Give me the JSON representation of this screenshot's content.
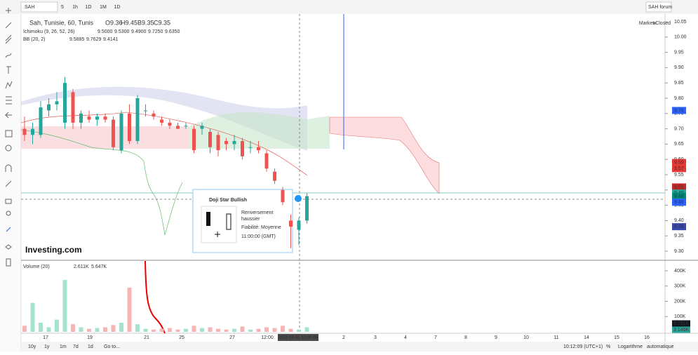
{
  "toolbar": {
    "symbol": "SAH",
    "intervals": [
      "5",
      "1h",
      "1D",
      "1M",
      "1D"
    ],
    "forum": "SAH forum"
  },
  "legend": {
    "title": "Sah, Tunisie, 60, Tunis",
    "ohlc": [
      "O9.36",
      "H9.45",
      "B9.35",
      "C9.35"
    ],
    "ichimoku": {
      "label": "Ichimoku (9, 26, 52, 26)",
      "values": [
        "9.5000",
        "9.5300",
        "9.4900",
        "9.7250",
        "9.6350"
      ],
      "colors": [
        "#2962ff",
        "#e53935",
        "#43a047",
        "#43a047",
        "#e53935"
      ]
    },
    "bb": {
      "label": "BB (20, 2)",
      "values": [
        "9.5885",
        "9.7629",
        "9.4141"
      ],
      "colors": [
        "#e53935",
        "#2962ff",
        "#2962ff"
      ]
    }
  },
  "market_status": "Market Closed",
  "price_ticks": [
    "10.05",
    "10.00",
    "9.95",
    "9.90",
    "9.85",
    "9.80",
    "9.75",
    "9.70",
    "9.65",
    "9.60",
    "9.55",
    "9.50",
    "9.45",
    "9.40",
    "9.35",
    "9.30"
  ],
  "price_labels": [
    {
      "text": "9.76",
      "color": "#2962ff"
    },
    {
      "text": "9.59",
      "color": "#e53935"
    },
    {
      "text": "9.57",
      "color": "#e53935"
    },
    {
      "text": "9.51",
      "color": "#c62828"
    },
    {
      "text": "9.49",
      "color": "#26a69a"
    },
    {
      "text": "9.47",
      "color": "#555555"
    },
    {
      "text": "9.48",
      "color": "#00897b"
    },
    {
      "text": "9.46",
      "color": "#2962ff"
    },
    {
      "text": "9.38",
      "color": "#3949ab"
    }
  ],
  "candles": [
    [
      9.7,
      9.74,
      9.66,
      9.68
    ],
    [
      9.68,
      9.72,
      9.65,
      9.7
    ],
    [
      9.68,
      9.79,
      9.67,
      9.77
    ],
    [
      9.76,
      9.8,
      9.74,
      9.78
    ],
    [
      9.78,
      9.82,
      9.76,
      9.79
    ],
    [
      9.72,
      9.87,
      9.7,
      9.85
    ],
    [
      9.82,
      9.83,
      9.7,
      9.72
    ],
    [
      9.72,
      9.76,
      9.7,
      9.75
    ],
    [
      9.74,
      9.76,
      9.72,
      9.73
    ],
    [
      9.73,
      9.75,
      9.71,
      9.74
    ],
    [
      9.74,
      9.75,
      9.72,
      9.73
    ],
    [
      9.73,
      9.74,
      9.63,
      9.64
    ],
    [
      9.63,
      9.76,
      9.62,
      9.75
    ],
    [
      9.75,
      9.78,
      9.65,
      9.66
    ],
    [
      9.66,
      9.81,
      9.65,
      9.8
    ],
    [
      9.76,
      9.78,
      9.74,
      9.76
    ],
    [
      9.75,
      9.76,
      9.73,
      9.74
    ],
    [
      9.73,
      9.74,
      9.71,
      9.72
    ],
    [
      9.72,
      9.73,
      9.7,
      9.71
    ],
    [
      9.71,
      9.72,
      9.7,
      9.7
    ],
    [
      9.71,
      9.72,
      9.7,
      9.71
    ],
    [
      9.7,
      9.71,
      9.62,
      9.63
    ],
    [
      9.7,
      9.72,
      9.68,
      9.71
    ],
    [
      9.69,
      9.7,
      9.62,
      9.64
    ],
    [
      9.68,
      9.69,
      9.61,
      9.63
    ],
    [
      9.66,
      9.67,
      9.63,
      9.65
    ],
    [
      9.65,
      9.68,
      9.63,
      9.66
    ],
    [
      9.66,
      9.67,
      9.6,
      9.61
    ],
    [
      9.64,
      9.66,
      9.62,
      9.64
    ],
    [
      9.64,
      9.66,
      9.62,
      9.63
    ],
    [
      9.62,
      9.63,
      9.56,
      9.57
    ],
    [
      9.56,
      9.57,
      9.52,
      9.53
    ],
    [
      9.5,
      9.51,
      9.45,
      9.46
    ],
    [
      9.4,
      9.42,
      9.31,
      9.38
    ],
    [
      9.37,
      9.41,
      9.32,
      9.4
    ],
    [
      9.4,
      9.49,
      9.39,
      9.48
    ]
  ],
  "volumes": [
    40,
    190,
    60,
    30,
    80,
    340,
    50,
    30,
    20,
    25,
    30,
    45,
    60,
    290,
    50,
    20,
    15,
    20,
    25,
    15,
    20,
    40,
    25,
    30,
    20,
    15,
    20,
    35,
    15,
    20,
    30,
    25,
    40,
    20,
    15,
    30
  ],
  "volume_legend": {
    "label": "Volume (20)",
    "values": [
      "2.611K",
      "5.647K"
    ]
  },
  "volume_ticks": [
    "400K",
    "300K",
    "200K",
    "100K"
  ],
  "volume_labels": [
    {
      "text": "5.781K",
      "color": "#131722"
    },
    {
      "text": "3.146K",
      "color": "#26a69a"
    }
  ],
  "x_labels": [
    "17",
    "19",
    "21",
    "25",
    "27",
    "12:00",
    "2022-10-31 12:00:00",
    "2",
    "3",
    "4",
    "7",
    "8",
    "9",
    "10",
    "11",
    "14",
    "15",
    "16"
  ],
  "popup": {
    "title": "Doji Star Bullish",
    "lines": [
      "Renversement",
      "haussier",
      "Fiabilité: Moyenne",
      "11:00:00 (GMT)"
    ]
  },
  "logo": "Investing.com",
  "bottom": {
    "ranges": [
      "10y",
      "1y",
      "1m",
      "7d",
      "1d",
      "Go to..."
    ],
    "time": "10:12:09 (UTC+1)",
    "percent": "%",
    "log": "Logarithme",
    "auto": "automatique"
  }
}
